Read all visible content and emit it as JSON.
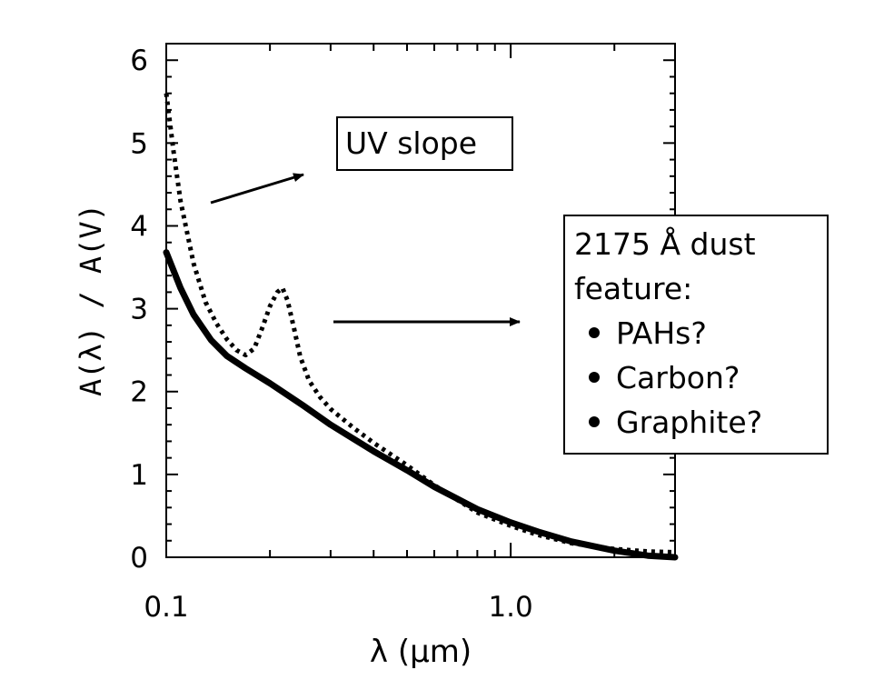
{
  "chart_data": {
    "type": "line",
    "xscale": "log",
    "xlim": [
      0.1,
      3.0
    ],
    "ylim": [
      0,
      6.2
    ],
    "xticklabels": [
      "0.1",
      "1.0"
    ],
    "yticklabels": [
      "0",
      "1",
      "2",
      "3",
      "4",
      "5",
      "6"
    ],
    "xlabel": "λ (μm)",
    "ylabel": "A(λ) / A(V)",
    "series": [
      {
        "style": "solid",
        "x": [
          0.1,
          0.11,
          0.12,
          0.135,
          0.15,
          0.17,
          0.2,
          0.25,
          0.3,
          0.4,
          0.5,
          0.6,
          0.8,
          1.0,
          1.2,
          1.5,
          2.0,
          2.5,
          3.0
        ],
        "y": [
          3.68,
          3.25,
          2.93,
          2.62,
          2.43,
          2.28,
          2.1,
          1.83,
          1.6,
          1.28,
          1.05,
          0.85,
          0.58,
          0.42,
          0.31,
          0.19,
          0.08,
          0.02,
          0.0
        ]
      },
      {
        "style": "dotted",
        "x": [
          0.1,
          0.105,
          0.11,
          0.12,
          0.13,
          0.14,
          0.15,
          0.16,
          0.17,
          0.18,
          0.19,
          0.2,
          0.21,
          0.2175,
          0.225,
          0.235,
          0.245,
          0.26,
          0.28,
          0.3,
          0.35,
          0.4,
          0.5,
          0.6,
          0.8,
          1.0,
          1.2,
          1.5,
          2.0,
          2.5,
          3.0
        ],
        "y": [
          5.6,
          4.9,
          4.3,
          3.55,
          3.08,
          2.82,
          2.63,
          2.5,
          2.44,
          2.52,
          2.77,
          3.03,
          3.2,
          3.25,
          3.1,
          2.76,
          2.42,
          2.13,
          1.93,
          1.79,
          1.56,
          1.38,
          1.11,
          0.87,
          0.54,
          0.38,
          0.27,
          0.17,
          0.1,
          0.07,
          0.06
        ]
      }
    ],
    "arrows": [
      {
        "target": "uv"
      },
      {
        "target": "dust"
      }
    ]
  },
  "annotations": {
    "uv_slope": "UV slope",
    "dust_title_1": "2175 Å dust",
    "dust_title_2": "feature:",
    "bullets": [
      "PAHs?",
      "Carbon?",
      "Graphite?"
    ]
  }
}
